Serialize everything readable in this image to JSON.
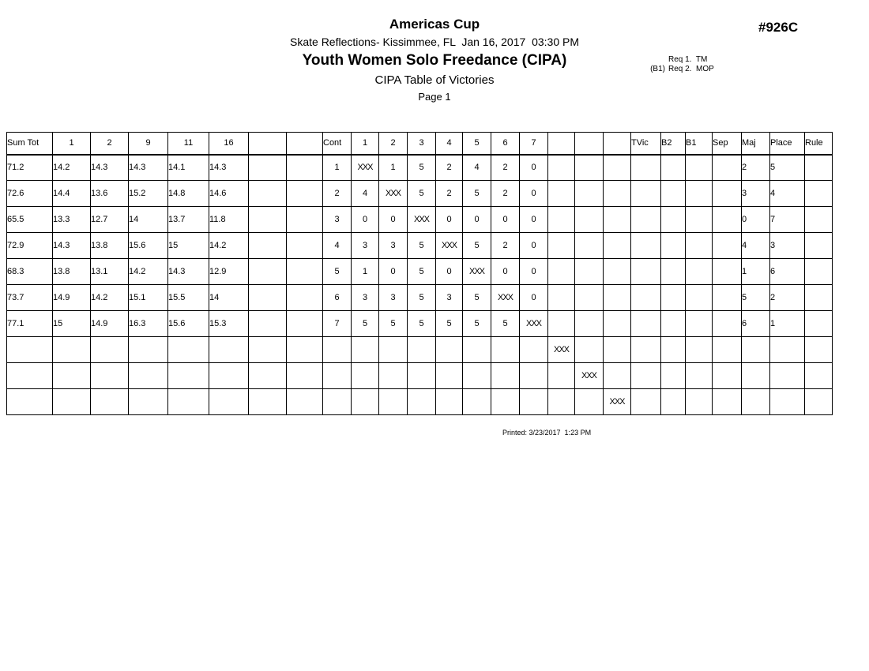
{
  "header": {
    "event_title": "Americas Cup",
    "venue_line": "Skate Reflections- Kissimmee, FL  Jan 16, 2017  03:30 PM",
    "category_title": "Youth Women Solo Freedance (CIPA)",
    "report_title": "CIPA Table of Victories",
    "page_label": "Page 1",
    "event_number": "#926C",
    "req_rows": [
      {
        "prefix": "",
        "text": "Req 1.  TM"
      },
      {
        "prefix": "(B1)",
        "text": "Req 2.  MOP"
      }
    ]
  },
  "table": {
    "columns": [
      "Sum Tot",
      "1",
      "2",
      "9",
      "11",
      "16",
      "",
      "",
      "Cont",
      "1",
      "2",
      "3",
      "4",
      "5",
      "6",
      "7",
      "",
      "",
      "",
      "TVic",
      "B2",
      "B1",
      "Sep",
      "Maj",
      "Place",
      "Rule"
    ],
    "rows": [
      [
        "71.2",
        "14.2",
        "14.3",
        "14.3",
        "14.1",
        "14.3",
        "",
        "",
        "1",
        "XXX",
        "1",
        "5",
        "2",
        "4",
        "2",
        "0",
        "",
        "",
        "",
        "",
        "",
        "",
        "",
        "2",
        "5",
        ""
      ],
      [
        "72.6",
        "14.4",
        "13.6",
        "15.2",
        "14.8",
        "14.6",
        "",
        "",
        "2",
        "4",
        "XXX",
        "5",
        "2",
        "5",
        "2",
        "0",
        "",
        "",
        "",
        "",
        "",
        "",
        "",
        "3",
        "4",
        ""
      ],
      [
        "65.5",
        "13.3",
        "12.7",
        "14",
        "13.7",
        "11.8",
        "",
        "",
        "3",
        "0",
        "0",
        "XXX",
        "0",
        "0",
        "0",
        "0",
        "",
        "",
        "",
        "",
        "",
        "",
        "",
        "0",
        "7",
        ""
      ],
      [
        "72.9",
        "14.3",
        "13.8",
        "15.6",
        "15",
        "14.2",
        "",
        "",
        "4",
        "3",
        "3",
        "5",
        "XXX",
        "5",
        "2",
        "0",
        "",
        "",
        "",
        "",
        "",
        "",
        "",
        "4",
        "3",
        ""
      ],
      [
        "68.3",
        "13.8",
        "13.1",
        "14.2",
        "14.3",
        "12.9",
        "",
        "",
        "5",
        "1",
        "0",
        "5",
        "0",
        "XXX",
        "0",
        "0",
        "",
        "",
        "",
        "",
        "",
        "",
        "",
        "1",
        "6",
        ""
      ],
      [
        "73.7",
        "14.9",
        "14.2",
        "15.1",
        "15.5",
        "14",
        "",
        "",
        "6",
        "3",
        "3",
        "5",
        "3",
        "5",
        "XXX",
        "0",
        "",
        "",
        "",
        "",
        "",
        "",
        "",
        "5",
        "2",
        ""
      ],
      [
        "77.1",
        "15",
        "14.9",
        "16.3",
        "15.6",
        "15.3",
        "",
        "",
        "7",
        "5",
        "5",
        "5",
        "5",
        "5",
        "5",
        "XXX",
        "",
        "",
        "",
        "",
        "",
        "",
        "",
        "6",
        "1",
        ""
      ],
      [
        "",
        "",
        "",
        "",
        "",
        "",
        "",
        "",
        "",
        "",
        "",
        "",
        "",
        "",
        "",
        "",
        "XXX",
        "",
        "",
        "",
        "",
        "",
        "",
        "",
        "",
        ""
      ],
      [
        "",
        "",
        "",
        "",
        "",
        "",
        "",
        "",
        "",
        "",
        "",
        "",
        "",
        "",
        "",
        "",
        "",
        "XXX",
        "",
        "",
        "",
        "",
        "",
        "",
        "",
        ""
      ],
      [
        "",
        "",
        "",
        "",
        "",
        "",
        "",
        "",
        "",
        "",
        "",
        "",
        "",
        "",
        "",
        "",
        "",
        "",
        "XXX",
        "",
        "",
        "",
        "",
        "",
        "",
        ""
      ]
    ]
  },
  "footer": {
    "printed_label": "Printed: 3/23/2017  1:23 PM"
  }
}
